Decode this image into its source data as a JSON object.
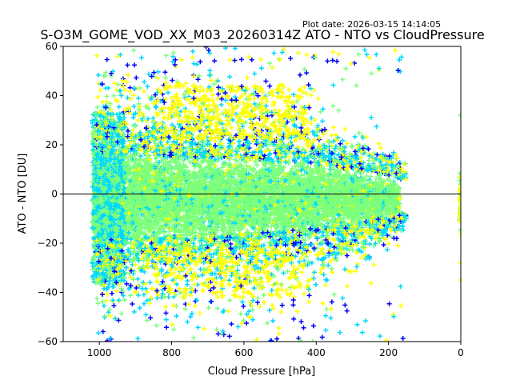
{
  "chart_data": {
    "type": "scatter",
    "plot_date": "Plot date: 2026-03-15 14:14:05",
    "title": "S-O3M_GOME_VOD_XX_M03_20260314Z ATO - NTO vs CloudPressure",
    "xlabel": "Cloud Pressure [hPa]",
    "ylabel": "ATO - NTO [DU]",
    "xlim": [
      1100,
      0
    ],
    "ylim": [
      -60,
      60
    ],
    "x_reversed": true,
    "xticks": [
      1000,
      800,
      600,
      400,
      200,
      0
    ],
    "yticks": [
      -60,
      -40,
      -20,
      0,
      20,
      40,
      60
    ],
    "marker": "+",
    "reference_line": {
      "y": 0,
      "color": "#000000"
    },
    "color_scale": [
      "#0000ff",
      "#00d8ff",
      "#7dff7a",
      "#ffff00"
    ],
    "clusters": [
      {
        "name": "dense core",
        "x_range": [
          1020,
          160
        ],
        "y_center": -2,
        "y_spread_by_pressure": [
          [
            1000,
            26
          ],
          [
            800,
            24
          ],
          [
            600,
            22
          ],
          [
            400,
            18
          ],
          [
            200,
            10
          ]
        ],
        "dominant_color": "#7dff7a"
      },
      {
        "name": "upper outliers",
        "x_range": [
          1000,
          150
        ],
        "y_range": [
          20,
          60
        ]
      },
      {
        "name": "lower outliers",
        "x_range": [
          1000,
          160
        ],
        "y_range": [
          -60,
          -20
        ]
      },
      {
        "name": "near-zero pressure",
        "x_range": [
          5,
          0
        ],
        "y_range": [
          -35,
          32
        ]
      }
    ],
    "grid": false,
    "legend": "none"
  }
}
